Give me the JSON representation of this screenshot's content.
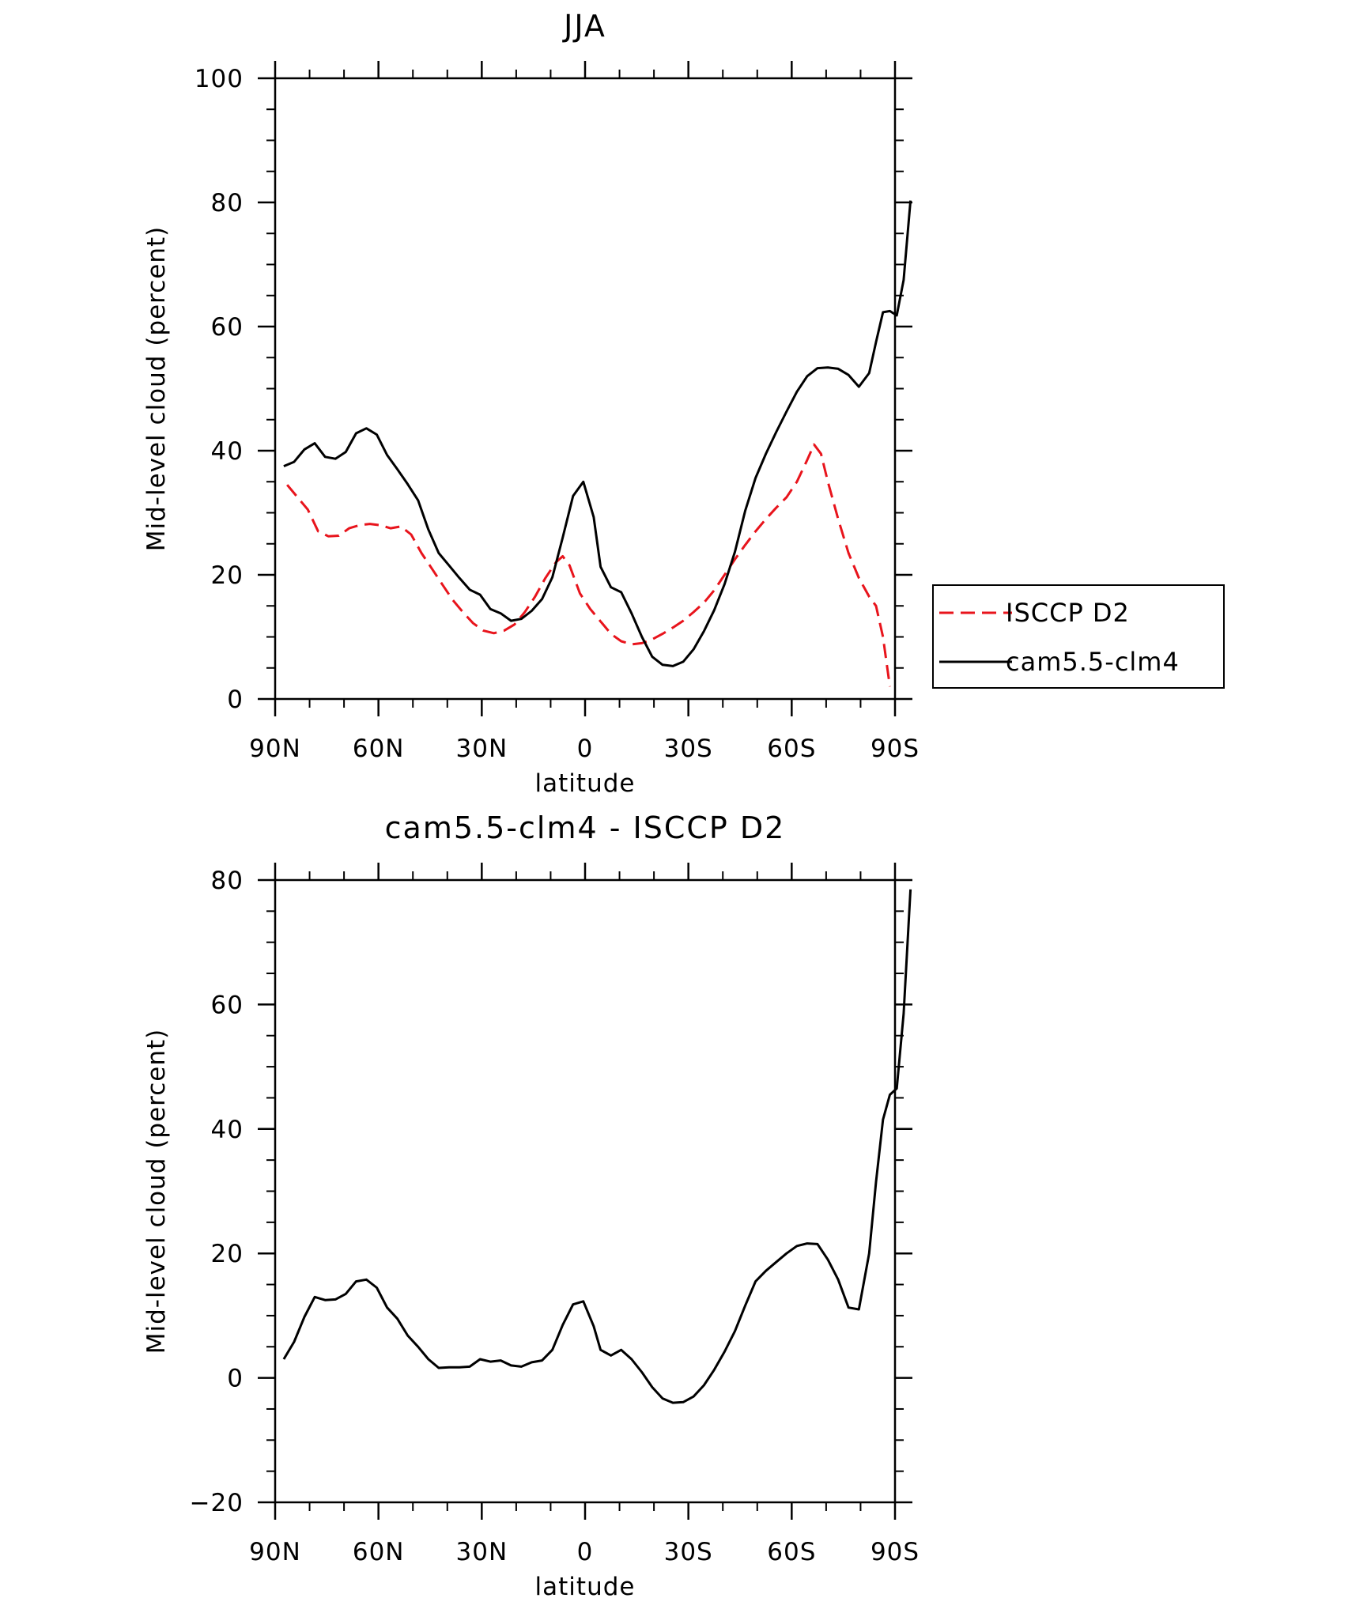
{
  "chart_data": [
    {
      "type": "line",
      "title": "JJA",
      "xlabel": "latitude",
      "ylabel": "Mid-level cloud (percent)",
      "xlim": [
        90,
        -90
      ],
      "ylim": [
        0,
        100
      ],
      "yticks": [
        0,
        20,
        40,
        60,
        80,
        100
      ],
      "xticks": [
        {
          "value": 90,
          "label": "90N"
        },
        {
          "value": 60,
          "label": "60N"
        },
        {
          "value": 30,
          "label": "30N"
        },
        {
          "value": 0,
          "label": "0"
        },
        {
          "value": -30,
          "label": "30S"
        },
        {
          "value": -60,
          "label": "60S"
        },
        {
          "value": -90,
          "label": "90S"
        }
      ],
      "legend": {
        "placement": "right"
      },
      "series": [
        {
          "name": "ISCCP D2",
          "color": "#e8141c",
          "style": "dashed",
          "points": [
            [
              86.5,
              34.5
            ],
            [
              83.5,
              32.5
            ],
            [
              80.5,
              30.5
            ],
            [
              77.5,
              27.0
            ],
            [
              74.5,
              26.2
            ],
            [
              71.5,
              26.3
            ],
            [
              68.5,
              27.5
            ],
            [
              65.5,
              28.0
            ],
            [
              62.5,
              28.2
            ],
            [
              59.5,
              28.0
            ],
            [
              56.5,
              27.5
            ],
            [
              53.5,
              27.8
            ],
            [
              50.5,
              26.5
            ],
            [
              47.5,
              23.5
            ],
            [
              44.5,
              21.0
            ],
            [
              41.5,
              18.5
            ],
            [
              38.5,
              16.0
            ],
            [
              35.5,
              14.0
            ],
            [
              32.5,
              12.2
            ],
            [
              29.5,
              11.0
            ],
            [
              26.5,
              10.6
            ],
            [
              23.5,
              11.0
            ],
            [
              20.5,
              12.0
            ],
            [
              17.5,
              14.0
            ],
            [
              14.5,
              16.5
            ],
            [
              11.5,
              19.5
            ],
            [
              8.5,
              22.0
            ],
            [
              6.5,
              23.0
            ],
            [
              4.5,
              21.5
            ],
            [
              1.5,
              17.0
            ],
            [
              -1.5,
              14.5
            ],
            [
              -4.5,
              12.5
            ],
            [
              -7.5,
              10.5
            ],
            [
              -10.5,
              9.3
            ],
            [
              -13.5,
              8.8
            ],
            [
              -16.5,
              9.0
            ],
            [
              -19.5,
              9.6
            ],
            [
              -22.5,
              10.5
            ],
            [
              -25.5,
              11.5
            ],
            [
              -28.5,
              12.6
            ],
            [
              -31.5,
              14.0
            ],
            [
              -34.5,
              15.5
            ],
            [
              -37.5,
              17.5
            ],
            [
              -40.5,
              20.0
            ],
            [
              -43.5,
              22.5
            ],
            [
              -46.5,
              24.8
            ],
            [
              -49.5,
              27.0
            ],
            [
              -52.5,
              29.0
            ],
            [
              -55.5,
              30.8
            ],
            [
              -58.5,
              32.5
            ],
            [
              -61.5,
              35.0
            ],
            [
              -64.5,
              38.5
            ],
            [
              -66.5,
              41.0
            ],
            [
              -68.5,
              39.5
            ],
            [
              -70.5,
              35.0
            ],
            [
              -73.5,
              29.0
            ],
            [
              -76.5,
              23.5
            ],
            [
              -79.5,
              19.5
            ],
            [
              -82.5,
              16.5
            ],
            [
              -84.5,
              15.0
            ],
            [
              -86.5,
              10.0
            ],
            [
              -88.5,
              2.0
            ]
          ]
        },
        {
          "name": "cam5.5-clm4",
          "color": "#000000",
          "style": "solid",
          "points": [
            [
              87.5,
              37.5
            ],
            [
              84.5,
              38.2
            ],
            [
              81.5,
              40.2
            ],
            [
              78.5,
              41.2
            ],
            [
              75.5,
              39.0
            ],
            [
              72.5,
              38.7
            ],
            [
              69.5,
              39.8
            ],
            [
              66.5,
              42.8
            ],
            [
              63.5,
              43.6
            ],
            [
              60.5,
              42.6
            ],
            [
              57.5,
              39.3
            ],
            [
              54.5,
              37.0
            ],
            [
              51.5,
              34.6
            ],
            [
              48.5,
              32.0
            ],
            [
              45.5,
              27.3
            ],
            [
              42.5,
              23.5
            ],
            [
              39.5,
              21.5
            ],
            [
              36.5,
              19.5
            ],
            [
              33.5,
              17.6
            ],
            [
              30.5,
              16.8
            ],
            [
              27.5,
              14.5
            ],
            [
              24.5,
              13.8
            ],
            [
              21.5,
              12.6
            ],
            [
              18.5,
              12.9
            ],
            [
              15.5,
              14.2
            ],
            [
              12.5,
              16.1
            ],
            [
              9.5,
              19.6
            ],
            [
              6.5,
              26.0
            ],
            [
              3.5,
              32.7
            ],
            [
              0.5,
              35.0
            ],
            [
              -2.5,
              29.3
            ],
            [
              -4.5,
              21.3
            ],
            [
              -7.5,
              18.0
            ],
            [
              -10.5,
              17.2
            ],
            [
              -13.5,
              13.8
            ],
            [
              -16.5,
              10.0
            ],
            [
              -19.5,
              6.8
            ],
            [
              -22.5,
              5.5
            ],
            [
              -25.5,
              5.3
            ],
            [
              -28.5,
              6.0
            ],
            [
              -31.5,
              8.0
            ],
            [
              -34.5,
              10.9
            ],
            [
              -37.5,
              14.3
            ],
            [
              -40.5,
              18.5
            ],
            [
              -43.5,
              23.7
            ],
            [
              -46.5,
              30.3
            ],
            [
              -49.5,
              35.6
            ],
            [
              -52.5,
              39.5
            ],
            [
              -55.5,
              43.0
            ],
            [
              -58.5,
              46.3
            ],
            [
              -61.5,
              49.5
            ],
            [
              -64.5,
              52.0
            ],
            [
              -67.5,
              53.3
            ],
            [
              -70.5,
              53.4
            ],
            [
              -73.5,
              53.2
            ],
            [
              -76.5,
              52.2
            ],
            [
              -79.5,
              50.3
            ],
            [
              -82.5,
              52.5
            ],
            [
              -84.5,
              57.5
            ],
            [
              -86.5,
              62.3
            ],
            [
              -88.5,
              62.5
            ],
            [
              -90.5,
              61.8
            ],
            [
              -92.5,
              67.5
            ],
            [
              -94.5,
              80.3
            ]
          ]
        }
      ]
    },
    {
      "type": "line",
      "title": "cam5.5-clm4 - ISCCP D2",
      "xlabel": "latitude",
      "ylabel": "Mid-level cloud (percent)",
      "xlim": [
        90,
        -90
      ],
      "ylim": [
        -20,
        80
      ],
      "yticks": [
        -20,
        0,
        20,
        40,
        60,
        80
      ],
      "xticks": [
        {
          "value": 90,
          "label": "90N"
        },
        {
          "value": 60,
          "label": "60N"
        },
        {
          "value": 30,
          "label": "30N"
        },
        {
          "value": 0,
          "label": "0"
        },
        {
          "value": -30,
          "label": "30S"
        },
        {
          "value": -60,
          "label": "60S"
        },
        {
          "value": -90,
          "label": "90S"
        }
      ],
      "series": [
        {
          "color": "#000000",
          "style": "solid",
          "points": [
            [
              87.5,
              3.0
            ],
            [
              84.5,
              5.8
            ],
            [
              81.5,
              9.8
            ],
            [
              78.5,
              13.0
            ],
            [
              75.5,
              12.5
            ],
            [
              72.5,
              12.6
            ],
            [
              69.5,
              13.5
            ],
            [
              66.5,
              15.5
            ],
            [
              63.5,
              15.8
            ],
            [
              60.5,
              14.5
            ],
            [
              57.5,
              11.3
            ],
            [
              54.5,
              9.5
            ],
            [
              51.5,
              6.8
            ],
            [
              48.5,
              5.0
            ],
            [
              45.5,
              3.0
            ],
            [
              42.5,
              1.6
            ],
            [
              39.5,
              1.7
            ],
            [
              36.5,
              1.7
            ],
            [
              33.5,
              1.8
            ],
            [
              30.5,
              3.0
            ],
            [
              27.5,
              2.6
            ],
            [
              24.5,
              2.8
            ],
            [
              21.5,
              2.0
            ],
            [
              18.5,
              1.8
            ],
            [
              15.5,
              2.5
            ],
            [
              12.5,
              2.8
            ],
            [
              9.5,
              4.5
            ],
            [
              6.5,
              8.5
            ],
            [
              3.5,
              11.8
            ],
            [
              0.5,
              12.3
            ],
            [
              -2.5,
              8.3
            ],
            [
              -4.5,
              4.5
            ],
            [
              -7.5,
              3.6
            ],
            [
              -10.5,
              4.5
            ],
            [
              -13.5,
              3.0
            ],
            [
              -16.5,
              0.9
            ],
            [
              -19.5,
              -1.5
            ],
            [
              -22.5,
              -3.3
            ],
            [
              -25.5,
              -4.0
            ],
            [
              -28.5,
              -3.9
            ],
            [
              -31.5,
              -3.0
            ],
            [
              -34.5,
              -1.2
            ],
            [
              -37.5,
              1.3
            ],
            [
              -40.5,
              4.2
            ],
            [
              -43.5,
              7.5
            ],
            [
              -46.5,
              11.6
            ],
            [
              -49.5,
              15.5
            ],
            [
              -52.5,
              17.2
            ],
            [
              -55.5,
              18.6
            ],
            [
              -58.5,
              20.0
            ],
            [
              -61.5,
              21.2
            ],
            [
              -64.5,
              21.6
            ],
            [
              -67.5,
              21.5
            ],
            [
              -70.5,
              19.0
            ],
            [
              -73.5,
              15.8
            ],
            [
              -76.5,
              11.3
            ],
            [
              -79.5,
              11.0
            ],
            [
              -82.5,
              20.0
            ],
            [
              -84.5,
              31.5
            ],
            [
              -86.5,
              41.5
            ],
            [
              -88.5,
              45.5
            ],
            [
              -90.5,
              46.5
            ],
            [
              -92.5,
              58.5
            ],
            [
              -94.5,
              78.5
            ]
          ]
        }
      ]
    }
  ]
}
